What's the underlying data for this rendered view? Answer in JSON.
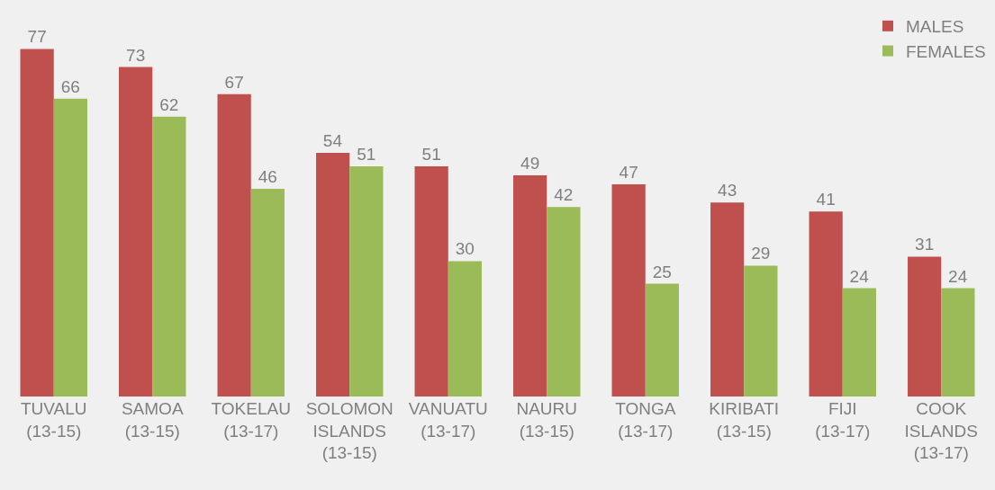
{
  "chart_data": {
    "type": "bar",
    "categories": [
      "TUVALU\n(13-15)",
      "SAMOA\n(13-15)",
      "TOKELAU\n(13-17)",
      "SOLOMON\nISLANDS\n(13-15)",
      "VANUATU\n(13-17)",
      "NAURU\n(13-15)",
      "TONGA\n(13-17)",
      "KIRIBATI\n(13-15)",
      "FIJI\n(13-17)",
      "COOK\nISLANDS\n(13-17)"
    ],
    "series": [
      {
        "name": "MALES",
        "color": "#c0504d",
        "values": [
          77,
          73,
          67,
          54,
          51,
          49,
          47,
          43,
          41,
          31
        ]
      },
      {
        "name": "FEMALES",
        "color": "#9bbb59",
        "values": [
          66,
          62,
          46,
          51,
          30,
          42,
          25,
          29,
          24,
          24
        ]
      }
    ],
    "data_labels": true,
    "legend": "top right",
    "grid": false
  }
}
